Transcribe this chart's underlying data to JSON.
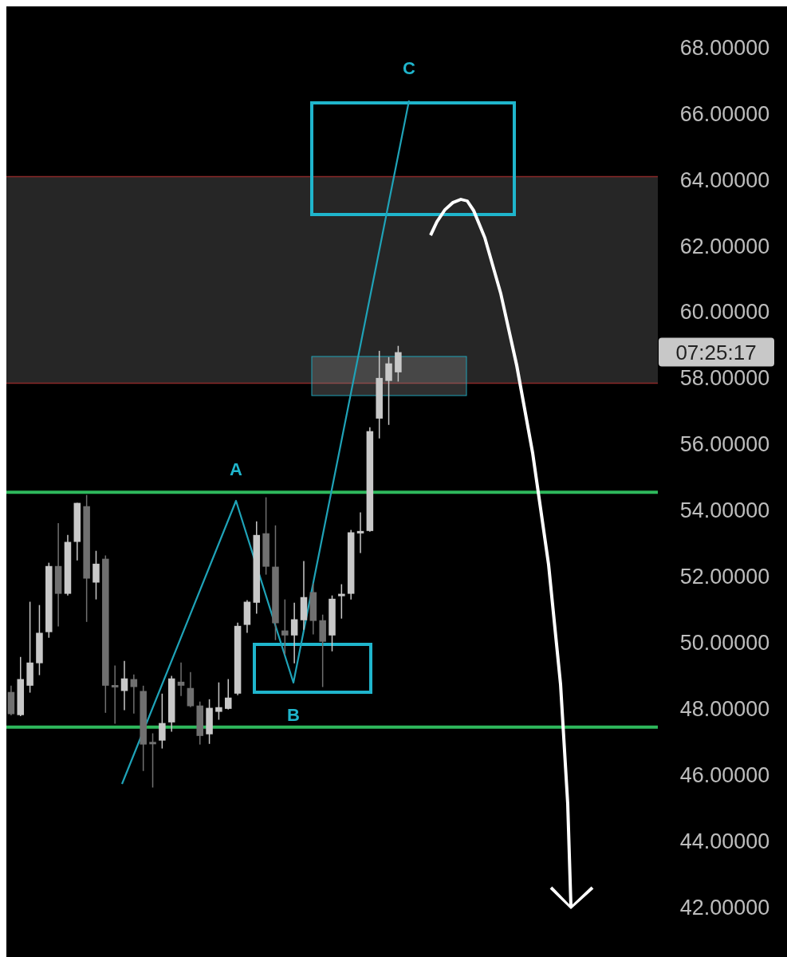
{
  "chart_data": {
    "type": "candlestick",
    "categories": [
      null,
      null,
      null,
      null,
      null,
      null,
      null,
      null,
      null,
      null,
      null,
      null,
      null,
      null,
      null,
      null,
      null,
      null,
      null,
      null,
      null,
      null,
      null,
      null,
      null,
      null,
      null,
      null,
      null,
      null,
      null,
      null,
      null,
      null,
      null,
      null,
      null,
      null,
      null,
      null,
      null,
      null,
      null,
      null,
      null,
      null,
      null,
      null,
      null,
      null,
      null,
      null,
      null,
      null,
      null,
      null,
      null,
      null,
      null,
      null,
      null,
      null,
      null,
      null,
      null,
      null,
      null,
      null,
      null
    ],
    "ohlc": [
      [
        48.51,
        48.7,
        47.8,
        47.84
      ],
      [
        47.81,
        49.57,
        47.78,
        48.9
      ],
      [
        48.7,
        51.24,
        48.49,
        49.4
      ],
      [
        49.38,
        51.14,
        49.02,
        50.3
      ],
      [
        50.32,
        52.42,
        50.15,
        52.32
      ],
      [
        52.32,
        53.62,
        50.49,
        51.48
      ],
      [
        51.48,
        53.26,
        51.43,
        53.05
      ],
      [
        53.05,
        54.23,
        52.49,
        54.23
      ],
      [
        54.13,
        54.47,
        50.63,
        51.94
      ],
      [
        51.82,
        52.78,
        51.31,
        52.39
      ],
      [
        52.54,
        52.64,
        47.88,
        48.7
      ],
      [
        48.72,
        49.31,
        47.55,
        48.7
      ],
      [
        48.54,
        49.45,
        47.96,
        48.92
      ],
      [
        48.9,
        49.04,
        47.86,
        48.66
      ],
      [
        48.54,
        48.7,
        46.12,
        46.92
      ],
      [
        47.0,
        47.26,
        45.62,
        46.96
      ],
      [
        47.04,
        48.46,
        46.8,
        47.57
      ],
      [
        47.59,
        49.0,
        47.31,
        48.92
      ],
      [
        48.82,
        49.4,
        48.39,
        48.7
      ],
      [
        48.63,
        49.11,
        48.05,
        48.08
      ],
      [
        48.1,
        48.22,
        46.92,
        47.18
      ],
      [
        47.23,
        48.29,
        46.94,
        48.03
      ],
      [
        47.91,
        48.8,
        47.67,
        48.05
      ],
      [
        48.0,
        48.9,
        47.98,
        48.34
      ],
      [
        48.46,
        50.61,
        48.41,
        50.51
      ],
      [
        50.54,
        51.29,
        50.3,
        51.24
      ],
      [
        51.21,
        53.67,
        50.88,
        53.26
      ],
      [
        53.31,
        54.4,
        52.06,
        52.3
      ],
      [
        52.3,
        53.55,
        50.08,
        50.59
      ],
      [
        50.37,
        51.31,
        49.65,
        50.22
      ],
      [
        50.22,
        51.21,
        49.38,
        50.71
      ],
      [
        50.68,
        52.47,
        50.39,
        51.38
      ],
      [
        51.53,
        51.79,
        50.25,
        50.66
      ],
      [
        50.68,
        50.85,
        48.66,
        50.03
      ],
      [
        50.22,
        51.43,
        49.74,
        51.33
      ],
      [
        51.41,
        51.77,
        50.73,
        51.48
      ],
      [
        51.48,
        53.41,
        51.31,
        53.34
      ],
      [
        53.33,
        53.94,
        52.71,
        53.38
      ],
      [
        53.38,
        56.52,
        53.36,
        56.4
      ],
      [
        56.78,
        58.83,
        56.18,
        58.01
      ],
      [
        57.92,
        58.64,
        56.59,
        58.45
      ],
      [
        58.18,
        58.98,
        57.9,
        58.79
      ],
      null,
      null,
      null,
      null,
      null,
      null,
      null,
      null,
      null,
      null,
      null,
      null,
      null,
      null,
      null,
      null,
      null,
      null,
      null,
      null,
      null,
      null,
      null,
      null,
      null,
      null,
      null
    ],
    "ylim": [
      40.3,
      69.25
    ],
    "yticks": [
      {
        "value": 42,
        "label": "42.00000"
      },
      {
        "value": 44,
        "label": "44.00000"
      },
      {
        "value": 46,
        "label": "46.00000"
      },
      {
        "value": 48,
        "label": "48.00000"
      },
      {
        "value": 50,
        "label": "50.00000"
      },
      {
        "value": 52,
        "label": "52.00000"
      },
      {
        "value": 54,
        "label": "54.00000"
      },
      {
        "value": 56,
        "label": "56.00000"
      },
      {
        "value": 58,
        "label": "58.00000"
      },
      {
        "value": 60,
        "label": "60.00000"
      },
      {
        "value": 62,
        "label": "62.00000"
      },
      {
        "value": 64,
        "label": "64.00000"
      },
      {
        "value": 66,
        "label": "66.00000"
      },
      {
        "value": 68,
        "label": "68.00000"
      }
    ],
    "tick_labels": "y",
    "grid": false,
    "ref_lines": [
      {
        "axis": "y",
        "value": 54.55,
        "color": "#2eb85c"
      },
      {
        "axis": "y",
        "value": 47.45,
        "color": "#2eb85c"
      },
      {
        "axis": "y",
        "value": 64.1,
        "color": "#8b2a2a"
      },
      {
        "axis": "y",
        "value": 57.85,
        "color": "#8b2a2a"
      }
    ],
    "bands": [
      {
        "axis": "y",
        "from": 57.85,
        "to": 64.1,
        "color": "#262626"
      }
    ],
    "annotations": [
      "A",
      "B",
      "C",
      "07:25:17"
    ]
  }
}
